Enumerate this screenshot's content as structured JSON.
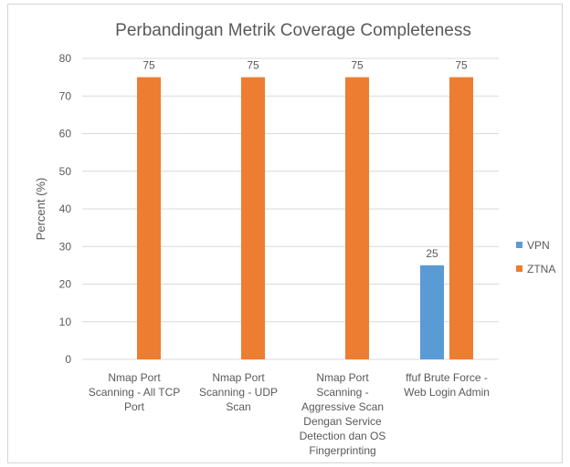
{
  "chart_data": {
    "type": "bar",
    "title": "Perbandingan Metrik Coverage Completeness",
    "ylabel": "Percent (%)",
    "xlabel": "",
    "ylim": [
      0,
      80
    ],
    "yticks": [
      0,
      10,
      20,
      30,
      40,
      50,
      60,
      70,
      80
    ],
    "grid": true,
    "legend_position": "right",
    "categories": [
      [
        "Nmap Port",
        "Scanning - All TCP",
        "Port"
      ],
      [
        "Nmap Port",
        "Scanning - UDP",
        "Scan"
      ],
      [
        "Nmap Port",
        "Scanning -",
        "Aggressive Scan",
        "Dengan Service",
        "Detection dan OS",
        "Fingerprinting"
      ],
      [
        "ffuf Brute Force -",
        "Web Login Admin"
      ]
    ],
    "series": [
      {
        "name": "VPN",
        "color": "#5B9BD5",
        "values": [
          0,
          0,
          0,
          25
        ],
        "labels": [
          "",
          "",
          "",
          "25"
        ]
      },
      {
        "name": "ZTNA",
        "color": "#ED7D31",
        "values": [
          75,
          75,
          75,
          75
        ],
        "labels": [
          "75",
          "75",
          "75",
          "75"
        ]
      }
    ]
  }
}
